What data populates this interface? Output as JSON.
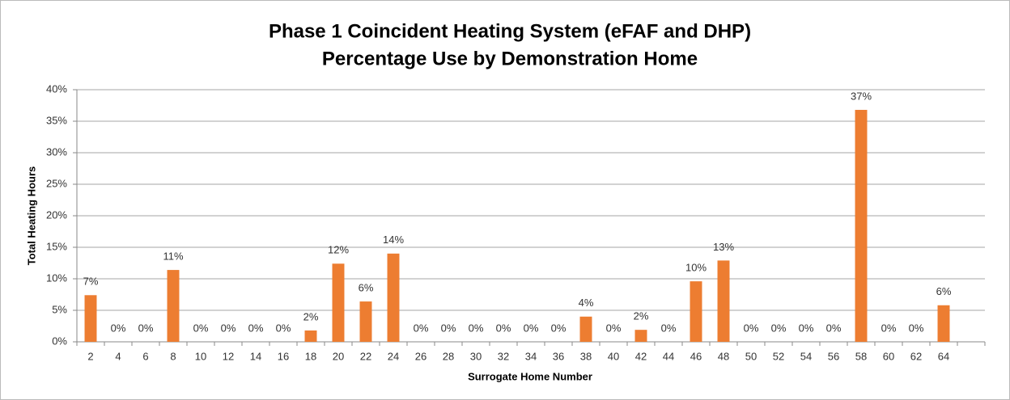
{
  "chart_data": {
    "type": "bar",
    "title": "Phase 1 Coincident Heating System (eFAF and DHP)",
    "subtitle": "Percentage Use by Demonstration Home",
    "x_label": "Surrogate Home Number",
    "y_label": "Total Heating Hours",
    "categories": [
      "2",
      "4",
      "6",
      "8",
      "10",
      "12",
      "14",
      "16",
      "18",
      "20",
      "22",
      "24",
      "26",
      "28",
      "30",
      "32",
      "34",
      "36",
      "38",
      "40",
      "42",
      "44",
      "46",
      "48",
      "50",
      "52",
      "54",
      "56",
      "58",
      "60",
      "62",
      "64",
      null
    ],
    "values": [
      7.4,
      0,
      0,
      11.4,
      0,
      0,
      0,
      0,
      1.8,
      12.4,
      6.4,
      14,
      0,
      0,
      0,
      0,
      0,
      0,
      4,
      0,
      1.9,
      0,
      9.6,
      12.9,
      0,
      0,
      0,
      0,
      36.8,
      0,
      0,
      5.8,
      null
    ],
    "value_labels": [
      "7%",
      "0%",
      "0%",
      "11%",
      "0%",
      "0%",
      "0%",
      "0%",
      "2%",
      "12%",
      "6%",
      "14%",
      "0%",
      "0%",
      "0%",
      "0%",
      "0%",
      "0%",
      "4%",
      "0%",
      "2%",
      "0%",
      "10%",
      "13%",
      "0%",
      "0%",
      "0%",
      "0%",
      "37%",
      "0%",
      "0%",
      "6%",
      null
    ],
    "color": "#ed7d31",
    "ylim": [
      0,
      40
    ],
    "yticks": [
      {
        "value": 0,
        "label": "0%"
      },
      {
        "value": 5,
        "label": "5%"
      },
      {
        "value": 10,
        "label": "10%"
      },
      {
        "value": 15,
        "label": "15%"
      },
      {
        "value": 20,
        "label": "20%"
      },
      {
        "value": 25,
        "label": "25%"
      },
      {
        "value": 30,
        "label": "30%"
      },
      {
        "value": 35,
        "label": "35%"
      },
      {
        "value": 40,
        "label": "40%"
      }
    ],
    "grid": true
  }
}
